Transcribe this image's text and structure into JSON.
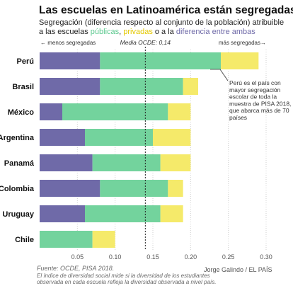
{
  "header": {
    "title": "Las escuelas en Latinoamérica están segregadas",
    "subtitle_prefix": "Segregación (diferencia respecto al conjunto de la población) atribuible a las escuelas ",
    "subtitle_public": "públicas",
    "subtitle_sep": ", ",
    "subtitle_private": "privadas",
    "subtitle_or": " o a la ",
    "subtitle_diff": "diferencia entre ambas"
  },
  "annotations": {
    "less": "← menos segregadas",
    "more": "más segregadas→",
    "media": "Media OCDE: 0,14",
    "callout": [
      "Perú es el país con",
      "mayor segregación",
      "escolar de toda la",
      "muestra de PISA 2018,",
      "que abarca más de 70",
      "países"
    ]
  },
  "footer": {
    "source": "Fuente: OCDE, PISA 2018.",
    "note1": "El índice de diversidad social mide si la diversidad de los estudiantes",
    "note2": "observada en cada escuela refleja la diversidad observada a nivel país.",
    "credit": "Jorge Galindo / EL PAÍS"
  },
  "chart_data": {
    "type": "bar",
    "orientation": "horizontal",
    "stacked": true,
    "categories": [
      "Perú",
      "Brasil",
      "México",
      "Argentina",
      "Panamá",
      "Colombia",
      "Uruguay",
      "Chile"
    ],
    "series": [
      {
        "name": "diferencia entre ambas",
        "color": "#6f6aa8",
        "values": [
          0.08,
          0.08,
          0.03,
          0.06,
          0.07,
          0.08,
          0.06,
          0.0
        ]
      },
      {
        "name": "públicas",
        "color": "#73d39d",
        "values": [
          0.16,
          0.11,
          0.14,
          0.09,
          0.09,
          0.09,
          0.1,
          0.07
        ]
      },
      {
        "name": "privadas",
        "color": "#f5ea6a",
        "values": [
          0.05,
          0.02,
          0.03,
          0.05,
          0.04,
          0.02,
          0.03,
          0.03
        ]
      }
    ],
    "reference_line": {
      "label": "Media OCDE: 0,14",
      "value": 0.14
    },
    "xlim": [
      0,
      0.3
    ],
    "xticks": [
      0.05,
      0.1,
      0.15,
      0.2,
      0.25,
      0.3
    ],
    "xtick_labels": [
      "0.05",
      "0.10",
      "0.15",
      "0.20",
      "0.25",
      "0.30"
    ],
    "grid": true
  }
}
